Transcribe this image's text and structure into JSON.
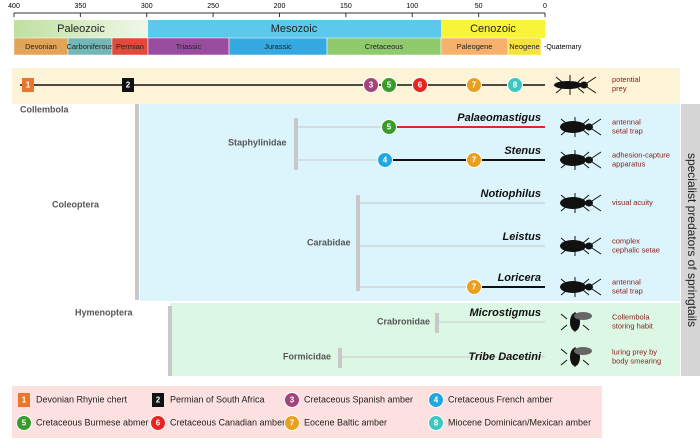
{
  "timescale": {
    "ticks": [
      400,
      350,
      300,
      250,
      200,
      150,
      100,
      50,
      0
    ],
    "eras": [
      "Paleozoic",
      "Mesozoic",
      "Cenozoic"
    ],
    "periods": [
      "Devonian",
      "Carboniferous",
      "Permian",
      "Triassic",
      "Jurassic",
      "Cretaceous",
      "Paleogene",
      "Neogene"
    ],
    "extra_period": "-Quaternary"
  },
  "prey": {
    "markers": [
      "1",
      "2",
      "3",
      "5",
      "6",
      "7",
      "8"
    ],
    "trait": [
      "potential",
      "prey"
    ]
  },
  "groups": {
    "collembola": "Collembola",
    "coleoptera": "Coleoptera",
    "hymenoptera": "Hymenoptera",
    "families": [
      "Staphylinidae",
      "Carabidae",
      "Crabronidae",
      "Formicidae"
    ]
  },
  "species": [
    {
      "name": "Palaeomastigus",
      "markers": [
        "5"
      ],
      "trait": [
        "antennal",
        "setal trap"
      ]
    },
    {
      "name": "Stenus",
      "markers": [
        "4",
        "7"
      ],
      "trait": [
        "adhesion-capture",
        "apparatus"
      ]
    },
    {
      "name": "Notiophilus",
      "markers": [],
      "trait": [
        "visual acuity"
      ]
    },
    {
      "name": "Leistus",
      "markers": [],
      "trait": [
        "complex",
        "cephalic setae"
      ]
    },
    {
      "name": "Loricera",
      "markers": [
        "7"
      ],
      "trait": [
        "antennal",
        "setal trap"
      ]
    },
    {
      "name": "Microstigmus",
      "markers": [],
      "trait": [
        "Collembola",
        "storing habit"
      ]
    },
    {
      "name": "Tribe Dacetini",
      "markers": [],
      "trait": [
        "luring prey by",
        "body smearing"
      ]
    }
  ],
  "side_label": "specialist predators of springtails",
  "legend": [
    {
      "number": "1",
      "label": "Devonian Rhynie chert"
    },
    {
      "number": "2",
      "label": "Permian of South Africa"
    },
    {
      "number": "3",
      "label": "Cretaceous Spanish amber"
    },
    {
      "number": "4",
      "label": "Cretaceous French amber"
    },
    {
      "number": "5",
      "label": "Cretaceous Burmese abmer"
    },
    {
      "number": "6",
      "label": "Cretaceous Canadian amber"
    },
    {
      "number": "7",
      "label": "Eocene Baltic amber"
    },
    {
      "number": "8",
      "label": "Miocene Dominican/Mexican amber"
    }
  ]
}
